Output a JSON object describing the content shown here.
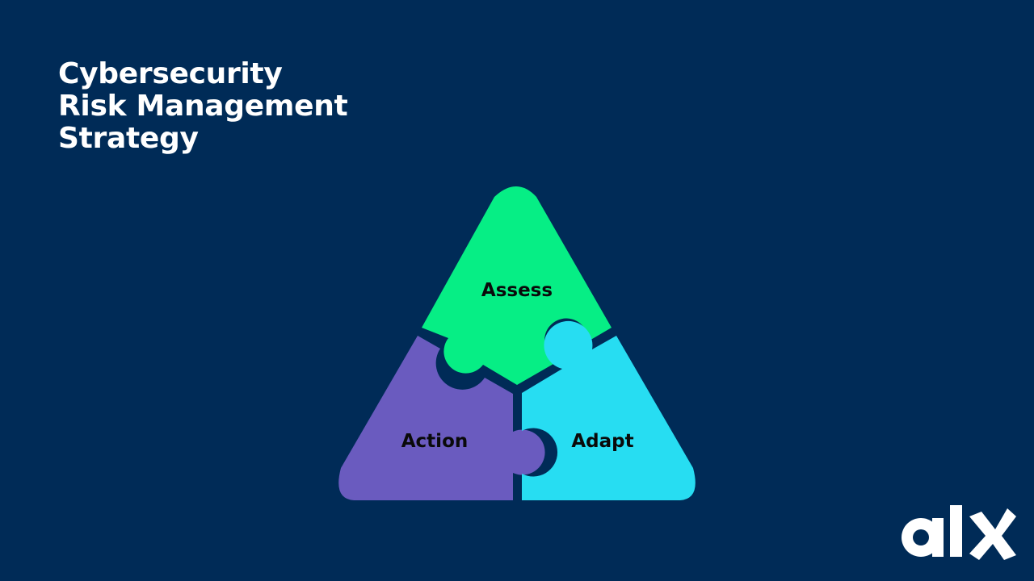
{
  "title": {
    "line1": "Cybersecurity",
    "line2": "Risk Management",
    "line3": "Strategy"
  },
  "pieces": {
    "assess": {
      "label": "Assess",
      "color": "#06EE85"
    },
    "action": {
      "label": "Action",
      "color": "#6A5BBF"
    },
    "adapt": {
      "label": "Adapt",
      "color": "#27DDF2"
    }
  },
  "background_color": "#002B57",
  "logo": {
    "text": "alx",
    "color": "#FFFFFF"
  }
}
